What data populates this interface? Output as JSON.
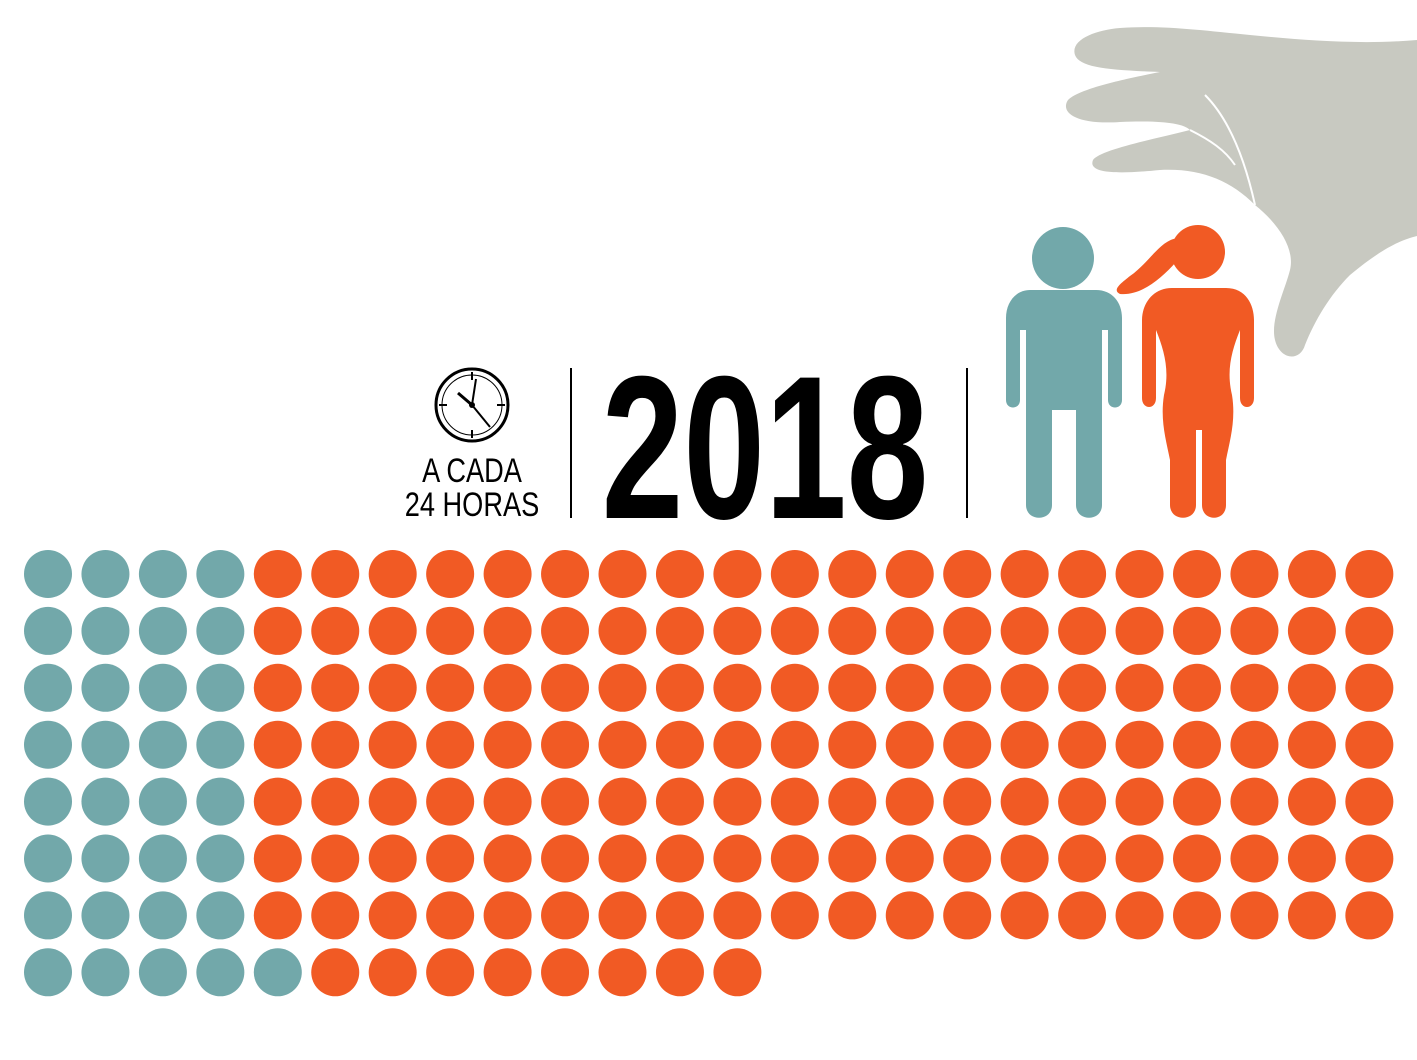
{
  "chart_data": {
    "type": "waffle",
    "title": "2018",
    "subtitle": [
      "A CADA",
      "24 HORAS"
    ],
    "series": [
      {
        "color": "#72a8aa",
        "values": [
          4,
          4,
          4,
          4,
          4,
          4,
          4,
          5
        ]
      },
      {
        "color": "#f15a24",
        "values": [
          20,
          20,
          20,
          20,
          20,
          20,
          20,
          8
        ]
      }
    ]
  }
}
